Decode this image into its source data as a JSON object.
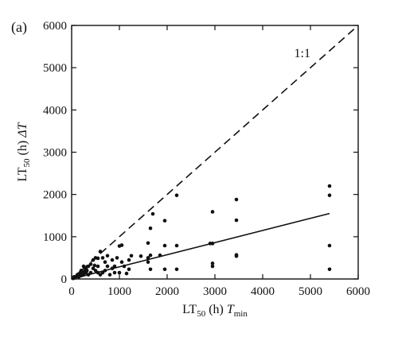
{
  "chart_data": {
    "type": "scatter",
    "panel_label": "(a)",
    "title": "",
    "xlabel": {
      "base": "LT",
      "sub": "50",
      "rest": " (h) ",
      "sym": "T",
      "sym_sub": "min"
    },
    "ylabel": {
      "base": "LT",
      "sub": "50",
      "rest": " (h) ",
      "sym": "ΔT"
    },
    "xlim": [
      0,
      6000
    ],
    "ylim": [
      0,
      6000
    ],
    "xticks": [
      0,
      1000,
      2000,
      3000,
      4000,
      5000,
      6000
    ],
    "yticks": [
      0,
      1000,
      2000,
      3000,
      4000,
      5000,
      6000
    ],
    "grid": false,
    "legend": "none",
    "reference_line": {
      "label": "1:1",
      "x": [
        0,
        6000
      ],
      "y": [
        0,
        6000
      ],
      "style": "dashed"
    },
    "fit_line": {
      "x": [
        0,
        5400
      ],
      "y": [
        0,
        1550
      ],
      "style": "solid"
    },
    "points": [
      {
        "x": 5400,
        "y": 2200
      },
      {
        "x": 5400,
        "y": 1980
      },
      {
        "x": 5400,
        "y": 790
      },
      {
        "x": 5400,
        "y": 230
      },
      {
        "x": 3450,
        "y": 1880
      },
      {
        "x": 3450,
        "y": 1390
      },
      {
        "x": 3450,
        "y": 570
      },
      {
        "x": 3450,
        "y": 540
      },
      {
        "x": 2950,
        "y": 1590
      },
      {
        "x": 2950,
        "y": 840
      },
      {
        "x": 2900,
        "y": 840
      },
      {
        "x": 2950,
        "y": 370
      },
      {
        "x": 2950,
        "y": 300
      },
      {
        "x": 2200,
        "y": 1980
      },
      {
        "x": 2200,
        "y": 790
      },
      {
        "x": 2200,
        "y": 230
      },
      {
        "x": 1950,
        "y": 1380
      },
      {
        "x": 1950,
        "y": 790
      },
      {
        "x": 1950,
        "y": 230
      },
      {
        "x": 1850,
        "y": 560
      },
      {
        "x": 1700,
        "y": 1540
      },
      {
        "x": 1650,
        "y": 1200
      },
      {
        "x": 1650,
        "y": 560
      },
      {
        "x": 1600,
        "y": 850
      },
      {
        "x": 1600,
        "y": 400
      },
      {
        "x": 1650,
        "y": 230
      },
      {
        "x": 1600,
        "y": 500
      },
      {
        "x": 1450,
        "y": 540
      },
      {
        "x": 1250,
        "y": 550
      },
      {
        "x": 1200,
        "y": 450
      },
      {
        "x": 1200,
        "y": 230
      },
      {
        "x": 1150,
        "y": 130
      },
      {
        "x": 1050,
        "y": 800
      },
      {
        "x": 1000,
        "y": 780
      },
      {
        "x": 1050,
        "y": 400
      },
      {
        "x": 1000,
        "y": 150
      },
      {
        "x": 950,
        "y": 500
      },
      {
        "x": 900,
        "y": 300
      },
      {
        "x": 850,
        "y": 450
      },
      {
        "x": 850,
        "y": 250
      },
      {
        "x": 800,
        "y": 100
      },
      {
        "x": 750,
        "y": 300
      },
      {
        "x": 700,
        "y": 200
      },
      {
        "x": 650,
        "y": 500
      },
      {
        "x": 650,
        "y": 150
      },
      {
        "x": 600,
        "y": 650
      },
      {
        "x": 550,
        "y": 490
      },
      {
        "x": 550,
        "y": 300
      },
      {
        "x": 550,
        "y": 150
      },
      {
        "x": 500,
        "y": 500
      },
      {
        "x": 500,
        "y": 200
      },
      {
        "x": 450,
        "y": 450
      },
      {
        "x": 450,
        "y": 250
      },
      {
        "x": 400,
        "y": 350
      },
      {
        "x": 400,
        "y": 150
      },
      {
        "x": 350,
        "y": 300
      },
      {
        "x": 350,
        "y": 100
      },
      {
        "x": 300,
        "y": 250
      },
      {
        "x": 300,
        "y": 150
      },
      {
        "x": 280,
        "y": 200
      },
      {
        "x": 250,
        "y": 300
      },
      {
        "x": 250,
        "y": 100
      },
      {
        "x": 200,
        "y": 200
      },
      {
        "x": 200,
        "y": 80
      },
      {
        "x": 180,
        "y": 150
      },
      {
        "x": 150,
        "y": 120
      },
      {
        "x": 150,
        "y": 50
      },
      {
        "x": 120,
        "y": 100
      },
      {
        "x": 100,
        "y": 60
      },
      {
        "x": 80,
        "y": 40
      },
      {
        "x": 60,
        "y": 30
      },
      {
        "x": 50,
        "y": 50
      },
      {
        "x": 40,
        "y": 20
      },
      {
        "x": 30,
        "y": 15
      },
      {
        "x": 700,
        "y": 400
      },
      {
        "x": 600,
        "y": 100
      },
      {
        "x": 900,
        "y": 150
      },
      {
        "x": 1100,
        "y": 300
      },
      {
        "x": 320,
        "y": 200
      },
      {
        "x": 230,
        "y": 160
      },
      {
        "x": 480,
        "y": 320
      },
      {
        "x": 750,
        "y": 550
      }
    ]
  }
}
